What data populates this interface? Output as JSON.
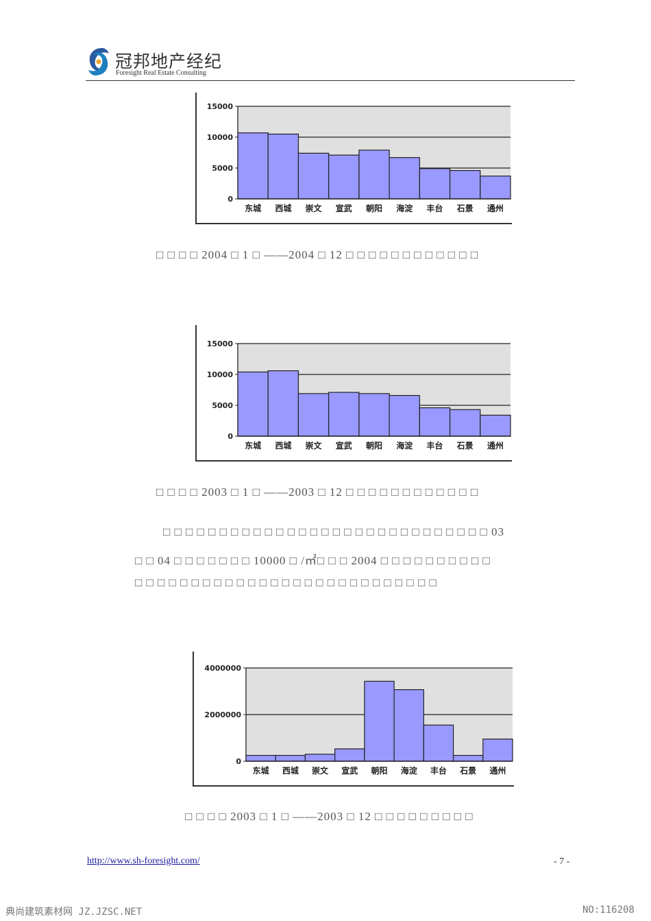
{
  "header": {
    "logo_cn": "冠邦地产经纪",
    "logo_en": "Foresight Real Estate Consulting"
  },
  "chart_data": [
    {
      "type": "bar",
      "categories": [
        "东城",
        "西城",
        "崇文",
        "宣武",
        "朝阳",
        "海淀",
        "丰台",
        "石景",
        "通州"
      ],
      "values": [
        10700,
        10500,
        7400,
        7100,
        7900,
        6700,
        4900,
        4600,
        3700
      ],
      "ylim": [
        0,
        15000
      ],
      "yticks": [
        "15000",
        "10000",
        "5000",
        "0"
      ],
      "grid": true,
      "colors": {
        "bar": "#9999ff",
        "plot_bg": "#e0e0e0"
      }
    },
    {
      "type": "bar",
      "categories": [
        "东城",
        "西城",
        "崇文",
        "宣武",
        "朝阳",
        "海淀",
        "丰台",
        "石景",
        "通州"
      ],
      "values": [
        10400,
        10600,
        6900,
        7100,
        6900,
        6600,
        4600,
        4300,
        3400
      ],
      "ylim": [
        0,
        15000
      ],
      "yticks": [
        "15000",
        "10000",
        "5000",
        "0"
      ],
      "grid": true,
      "colors": {
        "bar": "#9999ff",
        "plot_bg": "#e0e0e0"
      }
    },
    {
      "type": "bar",
      "categories": [
        "东城",
        "西城",
        "崇文",
        "宣武",
        "朝阳",
        "海淀",
        "丰台",
        "石景",
        "通州"
      ],
      "values": [
        250000,
        250000,
        300000,
        530000,
        3430000,
        3070000,
        1550000,
        250000,
        950000
      ],
      "ylim": [
        0,
        4000000
      ],
      "yticks": [
        "4000000",
        "2000000",
        "0"
      ],
      "grid": true,
      "colors": {
        "bar": "#9999ff",
        "plot_bg": "#e0e0e0"
      }
    }
  ],
  "captions": {
    "c1": "□ □ □ □ 2004 □ 1 □ ——2004 □ 12 □ □ □ □ □ □ □ □ □ □ □ □",
    "c2": "□ □ □ □ 2003 □ 1 □ ——2003 □ 12 □ □ □ □ □ □ □ □ □ □ □ □",
    "c3": "□ □ □ □ 2003 □ 1 □ ——2003 □ 12 □ □ □ □ □ □ □ □ □"
  },
  "paragraph": {
    "line1": "□ □ □ □ □ □ □ □ □ □ □ □ □ □ □ □ □ □ □ □ □ □ □ □ □ □ □ □ □ 03",
    "line2": "□ □ 04 □ □ □ □ □ □ □ 10000 □ /㎡□ □ □ 2004 □ □ □ □ □ □ □ □ □ □",
    "line3": "□ □ □ □ □ □ □ □ □ □ □ □ □ □ □ □ □ □ □ □ □ □ □ □ □ □ □"
  },
  "footer": {
    "url": "http://www.sh-foresight.com/",
    "page": "- 7 -"
  },
  "watermark": {
    "left": "典尚建筑素材网 JZ.JZSC.NET",
    "right": "NO:116208"
  }
}
